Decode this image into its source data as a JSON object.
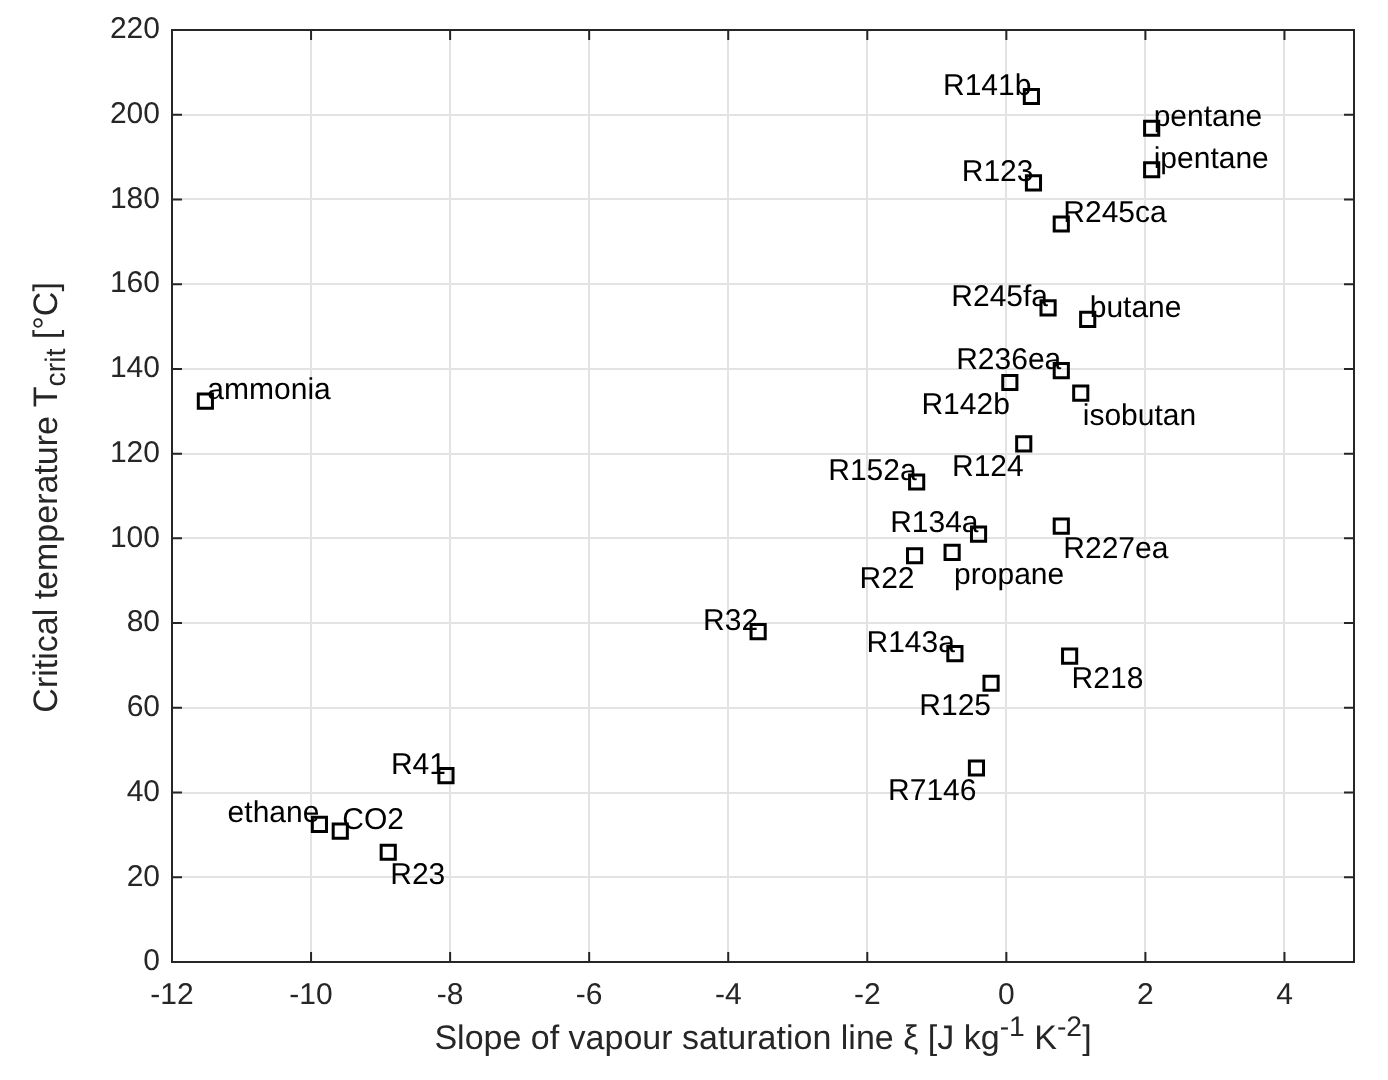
{
  "chart_data": {
    "type": "scatter",
    "xlabel": "Slope of vapour saturation line ξ [J kg$^{-1}$ K$^{-2}$]",
    "ylabel": "Critical temperature T$_{crit}$ [°C]",
    "x": [
      0.36,
      2.09,
      2.09,
      0.39,
      0.79,
      0.6,
      1.17,
      0.79,
      0.05,
      1.07,
      0.25,
      -1.29,
      -0.4,
      0.79,
      -1.32,
      -0.78,
      -0.74,
      0.91,
      -0.22,
      -0.43,
      -11.52,
      -3.57,
      -8.06,
      -9.88,
      -9.58,
      -8.89
    ],
    "series": [
      {
        "color": "#000000",
        "values": [
          204.3,
          196.8,
          187.0,
          183.9,
          174.2,
          154.4,
          151.7,
          139.6,
          136.8,
          134.3,
          122.3,
          113.3,
          101.0,
          102.9,
          95.9,
          96.7,
          72.8,
          72.2,
          65.8,
          45.8,
          132.4,
          78.0,
          44.0,
          32.5,
          30.9,
          25.9
        ]
      }
    ],
    "annotations": [
      {
        "text": "R141b",
        "x": 0.36,
        "y": 204.3
      },
      {
        "text": "pentane",
        "x": 2.09,
        "y": 196.8
      },
      {
        "text": "ipentane",
        "x": 2.09,
        "y": 187.0
      },
      {
        "text": "R123",
        "x": 0.39,
        "y": 183.9
      },
      {
        "text": "R245ca",
        "x": 0.79,
        "y": 174.2
      },
      {
        "text": "R245fa",
        "x": 0.6,
        "y": 154.4
      },
      {
        "text": "butane",
        "x": 1.17,
        "y": 151.7
      },
      {
        "text": "R236ea",
        "x": 0.79,
        "y": 139.6
      },
      {
        "text": "R142b",
        "x": 0.05,
        "y": 136.8
      },
      {
        "text": "isobutan",
        "x": 1.07,
        "y": 134.3
      },
      {
        "text": "R124",
        "x": 0.25,
        "y": 122.3
      },
      {
        "text": "R152a",
        "x": -1.29,
        "y": 113.3
      },
      {
        "text": "R134a",
        "x": -0.4,
        "y": 101.0
      },
      {
        "text": "R227ea",
        "x": 0.79,
        "y": 102.9
      },
      {
        "text": "R22",
        "x": -1.32,
        "y": 95.9
      },
      {
        "text": "propane",
        "x": -0.78,
        "y": 96.7
      },
      {
        "text": "R143a",
        "x": -0.74,
        "y": 72.8
      },
      {
        "text": "R218",
        "x": 0.91,
        "y": 72.2
      },
      {
        "text": "R125",
        "x": -0.22,
        "y": 65.8
      },
      {
        "text": "R7146",
        "x": -0.43,
        "y": 45.8
      },
      {
        "text": "ammonia",
        "x": -11.52,
        "y": 132.4
      },
      {
        "text": "R32",
        "x": -3.57,
        "y": 78.0
      },
      {
        "text": "R41",
        "x": -8.06,
        "y": 44.0
      },
      {
        "text": "ethane",
        "x": -9.88,
        "y": 32.5
      },
      {
        "text": "CO2",
        "x": -9.58,
        "y": 30.9
      },
      {
        "text": "R23",
        "x": -8.89,
        "y": 25.9
      }
    ],
    "xlim": [
      -12,
      5
    ],
    "xticks": [
      -12,
      -10,
      -8,
      -6,
      -4,
      -2,
      0,
      2,
      4
    ],
    "ylim": [
      0,
      220
    ],
    "yticks": [
      0,
      20,
      40,
      60,
      80,
      100,
      120,
      140,
      160,
      180,
      200,
      220
    ],
    "grid": true,
    "legend": false,
    "marker": "square"
  }
}
